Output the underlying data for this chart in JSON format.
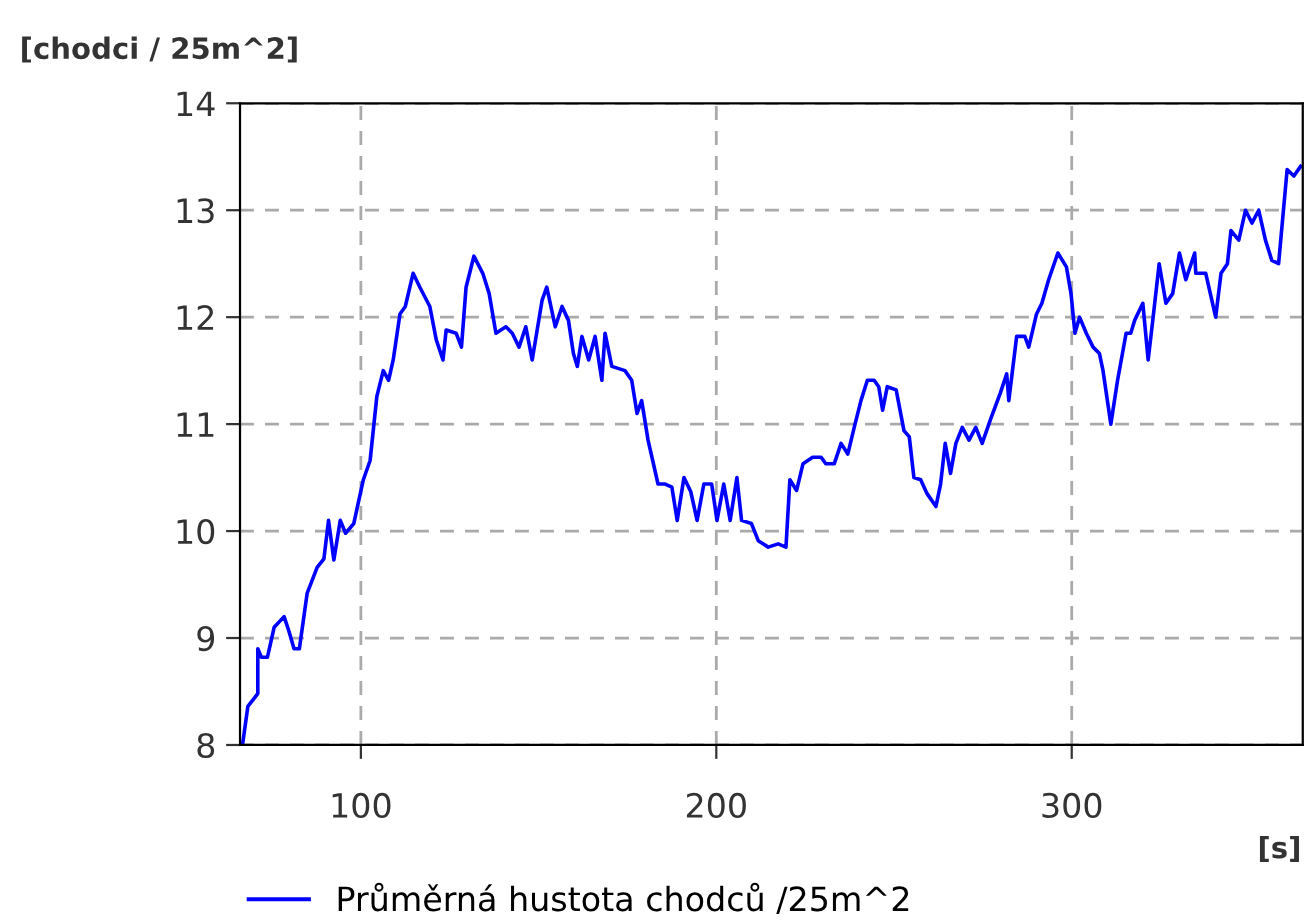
{
  "chart_data": {
    "type": "line",
    "xlabel": "[s]",
    "ylabel": "[chodci / 25m^2]",
    "xlim": [
      66,
      365
    ],
    "ylim": [
      8,
      14
    ],
    "xticks": [
      100,
      200,
      300
    ],
    "yticks": [
      8,
      9,
      10,
      11,
      12,
      13,
      14
    ],
    "grid": true,
    "legend": "bottom",
    "marker": "none",
    "line_style": "solid",
    "series": [
      {
        "name": "Průměrná hustota chodců /25m^2",
        "color": "#0000ff",
        "x": [
          66.7,
          68.2,
          71,
          71,
          72,
          73.7,
          75.6,
          78.4,
          79.7,
          81.2,
          82.7,
          84.9,
          87.7,
          89.6,
          90.9,
          92.4,
          94.2,
          95.7,
          98,
          100.7,
          102.6,
          104.5,
          106.3,
          107.8,
          109.1,
          111,
          112.5,
          114.7,
          116.6,
          119.4,
          121.2,
          123.1,
          124,
          126.8,
          128.3,
          129.6,
          131.8,
          134.3,
          136.1,
          138,
          140.8,
          142.6,
          144.5,
          146.4,
          148.2,
          151,
          152.3,
          154.7,
          156.6,
          158.4,
          159.8,
          160.9,
          162.2,
          164.1,
          165.9,
          167.8,
          168.7,
          170.6,
          174.3,
          176.2,
          177.7,
          179,
          180.8,
          183.6,
          185.6,
          187.5,
          189,
          190.9,
          192.8,
          194.6,
          196.5,
          198.7,
          200.2,
          202.1,
          203.9,
          205.8,
          207.1,
          209.9,
          211.8,
          214.6,
          217.4,
          219.6,
          220.7,
          222.6,
          224.4,
          227.1,
          229.5,
          230.8,
          233.2,
          235.1,
          237,
          238.8,
          240.7,
          242.5,
          244.4,
          245.7,
          246.8,
          248.1,
          250.6,
          252.8,
          254.3,
          255.6,
          257.5,
          259.3,
          261.8,
          263.1,
          264.4,
          265.9,
          267.4,
          269.2,
          271.1,
          273,
          274.8,
          277.1,
          279.9,
          281.7,
          282.3,
          284.5,
          286.8,
          287.9,
          290.1,
          291.6,
          293.5,
          296.1,
          298.5,
          299.8,
          300.9,
          302.2,
          304.1,
          306,
          307.8,
          308.8,
          311,
          312.9,
          315.3,
          316.6,
          317.7,
          320,
          321.5,
          322.8,
          324.6,
          326.5,
          328.4,
          330.3,
          332.1,
          334.6,
          334.9,
          337.7,
          340.5,
          342,
          343.8,
          344.8,
          347,
          348.9,
          350.7,
          352.6,
          354.5,
          356.3,
          358.2,
          360.6,
          362.5,
          364.4
        ],
        "values": [
          8.0,
          8.36,
          8.48,
          8.9,
          8.82,
          8.82,
          9.1,
          9.2,
          9.07,
          8.9,
          8.9,
          9.42,
          9.66,
          9.74,
          10.1,
          9.73,
          10.1,
          9.98,
          10.07,
          10.48,
          10.66,
          11.26,
          11.5,
          11.41,
          11.6,
          12.03,
          12.1,
          12.41,
          12.28,
          12.1,
          11.79,
          11.6,
          11.88,
          11.85,
          11.72,
          12.28,
          12.57,
          12.41,
          12.22,
          11.85,
          11.91,
          11.85,
          11.72,
          11.91,
          11.6,
          12.16,
          12.28,
          11.91,
          12.1,
          11.97,
          11.66,
          11.54,
          11.82,
          11.6,
          11.82,
          11.41,
          11.85,
          11.54,
          11.5,
          11.41,
          11.1,
          11.22,
          10.85,
          10.44,
          10.44,
          10.41,
          10.1,
          10.5,
          10.37,
          10.1,
          10.44,
          10.44,
          10.1,
          10.44,
          10.1,
          10.5,
          10.1,
          10.07,
          9.91,
          9.85,
          9.88,
          9.85,
          10.48,
          10.38,
          10.63,
          10.69,
          10.69,
          10.63,
          10.63,
          10.82,
          10.72,
          10.97,
          11.22,
          11.41,
          11.41,
          11.35,
          11.13,
          11.35,
          11.32,
          10.94,
          10.88,
          10.5,
          10.48,
          10.35,
          10.23,
          10.44,
          10.82,
          10.54,
          10.82,
          10.97,
          10.85,
          10.97,
          10.82,
          11.04,
          11.29,
          11.47,
          11.22,
          11.82,
          11.82,
          11.72,
          12.03,
          12.13,
          12.35,
          12.6,
          12.47,
          12.22,
          11.85,
          12.0,
          11.85,
          11.72,
          11.66,
          11.5,
          11.0,
          11.41,
          11.85,
          11.85,
          11.97,
          12.13,
          11.6,
          11.97,
          12.5,
          12.13,
          12.22,
          12.6,
          12.35,
          12.6,
          12.41,
          12.41,
          12.0,
          12.41,
          12.5,
          12.81,
          12.72,
          13.0,
          12.88,
          13.0,
          12.72,
          12.53,
          12.5,
          13.38,
          13.32,
          13.41
        ]
      }
    ]
  }
}
